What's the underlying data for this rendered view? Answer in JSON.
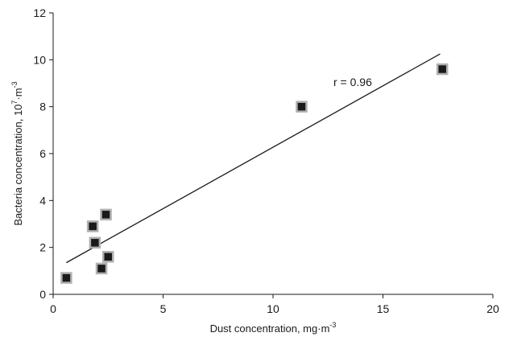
{
  "chart_data": {
    "type": "scatter",
    "title": "",
    "xlabel": {
      "text": "Dust concentration, mg·m",
      "sup": "-3"
    },
    "ylabel": {
      "text": "Bacteria concentration, 10",
      "sup": "7",
      "text2": "·m",
      "sup2": "-3"
    },
    "xlim": [
      0,
      20
    ],
    "ylim": [
      0,
      12
    ],
    "xticks": [
      "0",
      "5",
      "10",
      "15",
      "20"
    ],
    "yticks": [
      "0",
      "2",
      "4",
      "6",
      "8",
      "10",
      "12"
    ],
    "grid": false,
    "series": [
      {
        "points": [
          {
            "x": 0.6,
            "y": 0.7
          },
          {
            "x": 1.8,
            "y": 2.9
          },
          {
            "x": 1.9,
            "y": 2.2
          },
          {
            "x": 2.2,
            "y": 1.1
          },
          {
            "x": 2.4,
            "y": 3.4
          },
          {
            "x": 2.5,
            "y": 1.6
          },
          {
            "x": 11.3,
            "y": 8.0
          },
          {
            "x": 17.7,
            "y": 9.6
          }
        ],
        "marker_color": "#1a1a1a",
        "marker_border": "#b0b0b0"
      }
    ],
    "trendline": {
      "x": [
        0.6,
        17.6
      ],
      "y": [
        1.35,
        10.25
      ],
      "color": "#1a1a1a"
    },
    "annotation": "r = 0.96"
  }
}
